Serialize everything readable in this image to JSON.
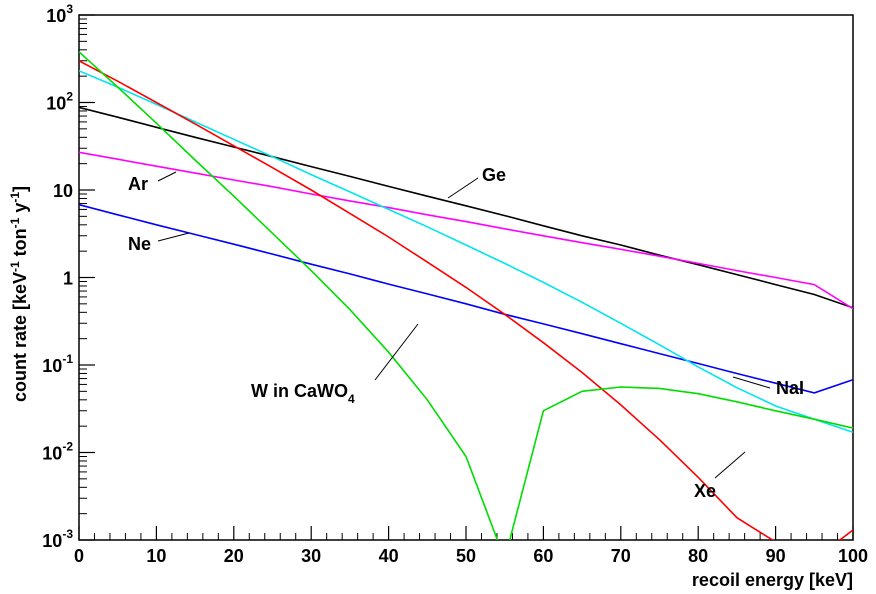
{
  "chart_data": {
    "type": "line",
    "title": "",
    "xlabel": "recoil energy [keV]",
    "ylabel": {
      "base": "count rate [keV",
      "exp1": "-1",
      "mid1": " ton",
      "exp2": "-1",
      "mid2": " y",
      "exp3": "-1",
      "end": "]"
    },
    "xlim": [
      0,
      100
    ],
    "ylim": [
      0.001,
      1000
    ],
    "yscale": "log",
    "grid": false,
    "x_ticks": [
      "0",
      "10",
      "20",
      "30",
      "40",
      "50",
      "60",
      "70",
      "80",
      "90",
      "100"
    ],
    "y_ticks": [
      {
        "value": 0.001,
        "base": "10",
        "exp": "-3"
      },
      {
        "value": 0.01,
        "base": "10",
        "exp": "-2"
      },
      {
        "value": 0.1,
        "base": "10",
        "exp": "-1"
      },
      {
        "value": 1,
        "base": "1",
        "exp": ""
      },
      {
        "value": 10,
        "base": "10",
        "exp": ""
      },
      {
        "value": 100,
        "base": "10",
        "exp": "2"
      },
      {
        "value": 1000,
        "base": "10",
        "exp": "3"
      }
    ],
    "x": [
      0,
      5,
      10,
      15,
      20,
      25,
      30,
      35,
      40,
      45,
      50,
      55,
      60,
      65,
      70,
      75,
      80,
      85,
      90,
      95,
      100
    ],
    "series": [
      {
        "name": "Ge",
        "color": "#000000",
        "values": [
          88,
          68,
          52,
          40,
          31,
          24,
          18.5,
          14.3,
          11,
          8.5,
          6.6,
          5.1,
          3.9,
          3.0,
          2.35,
          1.8,
          1.4,
          1.08,
          0.83,
          0.64,
          0.45
        ]
      },
      {
        "name": "Ar",
        "color": "#ff00ff",
        "values": [
          27,
          22.5,
          18.7,
          15.6,
          13.0,
          10.9,
          9.0,
          7.5,
          6.3,
          5.2,
          4.35,
          3.6,
          3.0,
          2.5,
          2.1,
          1.75,
          1.45,
          1.2,
          1.0,
          0.83,
          0.44
        ]
      },
      {
        "name": "Ne",
        "color": "#0000ff",
        "values": [
          6.8,
          5.2,
          4.0,
          3.1,
          2.4,
          1.85,
          1.42,
          1.1,
          0.84,
          0.65,
          0.5,
          0.38,
          0.295,
          0.228,
          0.175,
          0.135,
          0.104,
          0.08,
          0.062,
          0.048,
          0.068
        ]
      },
      {
        "name": "NaI",
        "color": "#00e5ee",
        "values": [
          230,
          150,
          95,
          60,
          38,
          24,
          15,
          9.5,
          6.0,
          3.8,
          2.35,
          1.45,
          0.88,
          0.52,
          0.3,
          0.17,
          0.095,
          0.055,
          0.034,
          0.024,
          0.017
        ]
      },
      {
        "name": "Xe",
        "color": "#ff0000",
        "values": [
          300,
          175,
          100,
          57,
          32,
          18,
          10,
          5.4,
          2.9,
          1.5,
          0.77,
          0.38,
          0.18,
          0.082,
          0.035,
          0.014,
          0.0052,
          0.0018,
          0.00095,
          0.0006,
          0.0013
        ]
      },
      {
        "name": "W in CaWO4",
        "color": "#00dd00",
        "values": [
          380,
          150,
          58,
          22,
          8.5,
          3.2,
          1.2,
          0.43,
          0.14,
          0.04,
          0.009,
          0.0006,
          0.03,
          0.05,
          0.056,
          0.054,
          0.047,
          0.038,
          0.03,
          0.024,
          0.019
        ]
      }
    ],
    "annotations": [
      {
        "label": "Ge"
      },
      {
        "label": "Ar"
      },
      {
        "label": "Ne"
      },
      {
        "label": "NaI"
      },
      {
        "label": "Xe"
      },
      {
        "label_main": "W in CaWO",
        "label_sub": "4"
      }
    ]
  }
}
